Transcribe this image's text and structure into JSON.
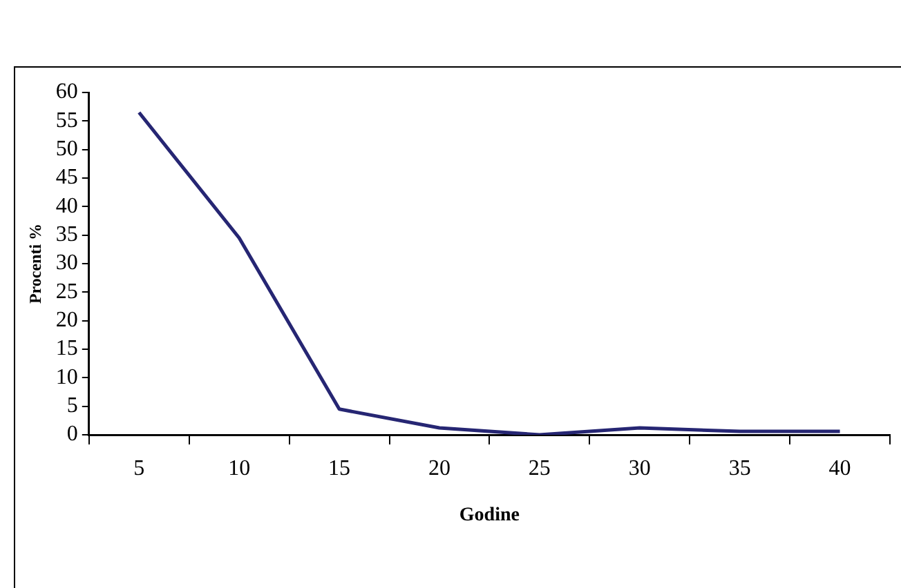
{
  "chart_data": {
    "type": "line",
    "xlabel": "Godine",
    "ylabel": "Procenti %",
    "categories": [
      "5",
      "10",
      "15",
      "20",
      "25",
      "30",
      "35",
      "40"
    ],
    "series": [
      {
        "color": "#262673",
        "values": [
          56.5,
          34.5,
          4.5,
          1.2,
          0,
          1.2,
          0.6,
          0.6
        ]
      }
    ],
    "ylim": [
      0,
      60
    ],
    "yticks": [
      0,
      5,
      10,
      15,
      20,
      25,
      30,
      35,
      40,
      45,
      50,
      55,
      60
    ],
    "grid": false,
    "legend": false,
    "marker": "none",
    "line_style": "solid"
  }
}
